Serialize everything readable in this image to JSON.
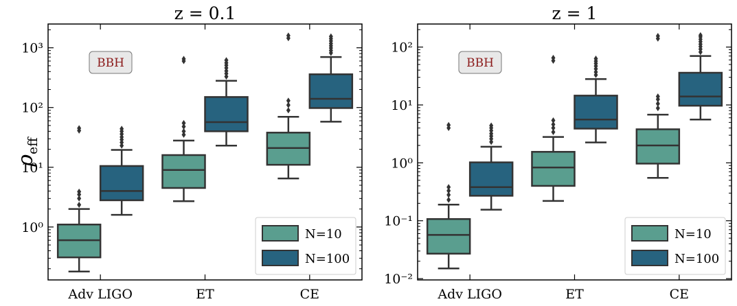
{
  "colors": {
    "N10": "#5a9e8f",
    "N100": "#27637f",
    "edge": "#333333",
    "badge_bg": "#e8e8e8",
    "badge_text": "#8b1a1a"
  },
  "chart_data": [
    {
      "type": "box",
      "title": "z = 0.1",
      "ylabel": "ρ",
      "ylabel_sub": "eff",
      "yscale": "log",
      "ylim": [
        0.13,
        2500
      ],
      "yticks": [
        {
          "value": 1,
          "label": "10⁰"
        },
        {
          "value": 10,
          "label": "10¹"
        },
        {
          "value": 100,
          "label": "10²"
        },
        {
          "value": 1000,
          "label": "10³"
        }
      ],
      "categories": [
        "Adv LIGO",
        "ET",
        "CE"
      ],
      "badge": "BBH",
      "legend": "lower right",
      "series": [
        {
          "name": "N=10",
          "color": "#5a9e8f",
          "boxes": [
            {
              "whislo": 0.18,
              "q1": 0.31,
              "med": 0.6,
              "q3": 1.1,
              "whishi": 2.0,
              "fliers": [
                2.35,
                3.0,
                3.5,
                3.9,
                41,
                45
              ]
            },
            {
              "whislo": 2.7,
              "q1": 4.5,
              "med": 9.0,
              "q3": 16,
              "whishi": 28,
              "fliers": [
                35,
                40,
                48,
                55,
                600,
                650
              ]
            },
            {
              "whislo": 6.5,
              "q1": 11,
              "med": 21,
              "q3": 38,
              "whishi": 70,
              "fliers": [
                90,
                110,
                130,
                1450,
                1600
              ]
            }
          ]
        },
        {
          "name": "N=100",
          "color": "#27637f",
          "boxes": [
            {
              "whislo": 1.6,
              "q1": 2.8,
              "med": 4.0,
              "q3": 10.5,
              "whishi": 19.5,
              "fliers": [
                23,
                26,
                29,
                32,
                36,
                40,
                44
              ]
            },
            {
              "whislo": 23,
              "q1": 40,
              "med": 57,
              "q3": 150,
              "whishi": 280,
              "fliers": [
                330,
                370,
                410,
                460,
                510,
                560,
                620
              ]
            },
            {
              "whislo": 58,
              "q1": 98,
              "med": 140,
              "q3": 360,
              "whishi": 700,
              "fliers": [
                820,
                900,
                990,
                1080,
                1180,
                1300,
                1420,
                1550
              ]
            }
          ]
        }
      ]
    },
    {
      "type": "box",
      "title": "z = 1",
      "ylabel": "",
      "yscale": "log",
      "ylim": [
        0.0095,
        250
      ],
      "yticks": [
        {
          "value": 0.01,
          "label": "10⁻²"
        },
        {
          "value": 0.1,
          "label": "10⁻¹"
        },
        {
          "value": 1,
          "label": "10⁰"
        },
        {
          "value": 10,
          "label": "10¹"
        },
        {
          "value": 100,
          "label": "10²"
        }
      ],
      "categories": [
        "Adv LIGO",
        "ET",
        "CE"
      ],
      "badge": "BBH",
      "legend": "lower right",
      "series": [
        {
          "name": "N=10",
          "color": "#5a9e8f",
          "boxes": [
            {
              "whislo": 0.015,
              "q1": 0.027,
              "med": 0.057,
              "q3": 0.107,
              "whishi": 0.19,
              "fliers": [
                0.23,
                0.28,
                0.33,
                0.38,
                4.0,
                4.5
              ]
            },
            {
              "whislo": 0.22,
              "q1": 0.4,
              "med": 0.83,
              "q3": 1.55,
              "whishi": 2.8,
              "fliers": [
                3.4,
                4.0,
                4.6,
                5.4,
                58,
                65
              ]
            },
            {
              "whislo": 0.55,
              "q1": 0.97,
              "med": 2.0,
              "q3": 3.8,
              "whishi": 6.8,
              "fliers": [
                8.8,
                10.5,
                12.5,
                14,
                140,
                155
              ]
            }
          ]
        },
        {
          "name": "N=100",
          "color": "#27637f",
          "boxes": [
            {
              "whislo": 0.155,
              "q1": 0.27,
              "med": 0.38,
              "q3": 1.02,
              "whishi": 1.9,
              "fliers": [
                2.3,
                2.6,
                2.9,
                3.2,
                3.6,
                4.0,
                4.4
              ]
            },
            {
              "whislo": 2.25,
              "q1": 3.9,
              "med": 5.6,
              "q3": 14.5,
              "whishi": 28,
              "fliers": [
                33,
                37,
                42,
                47,
                52,
                57,
                63
              ]
            },
            {
              "whislo": 5.6,
              "q1": 9.7,
              "med": 14,
              "q3": 36,
              "whishi": 70,
              "fliers": [
                82,
                92,
                102,
                112,
                124,
                136,
                150,
                160
              ]
            }
          ]
        }
      ]
    }
  ]
}
